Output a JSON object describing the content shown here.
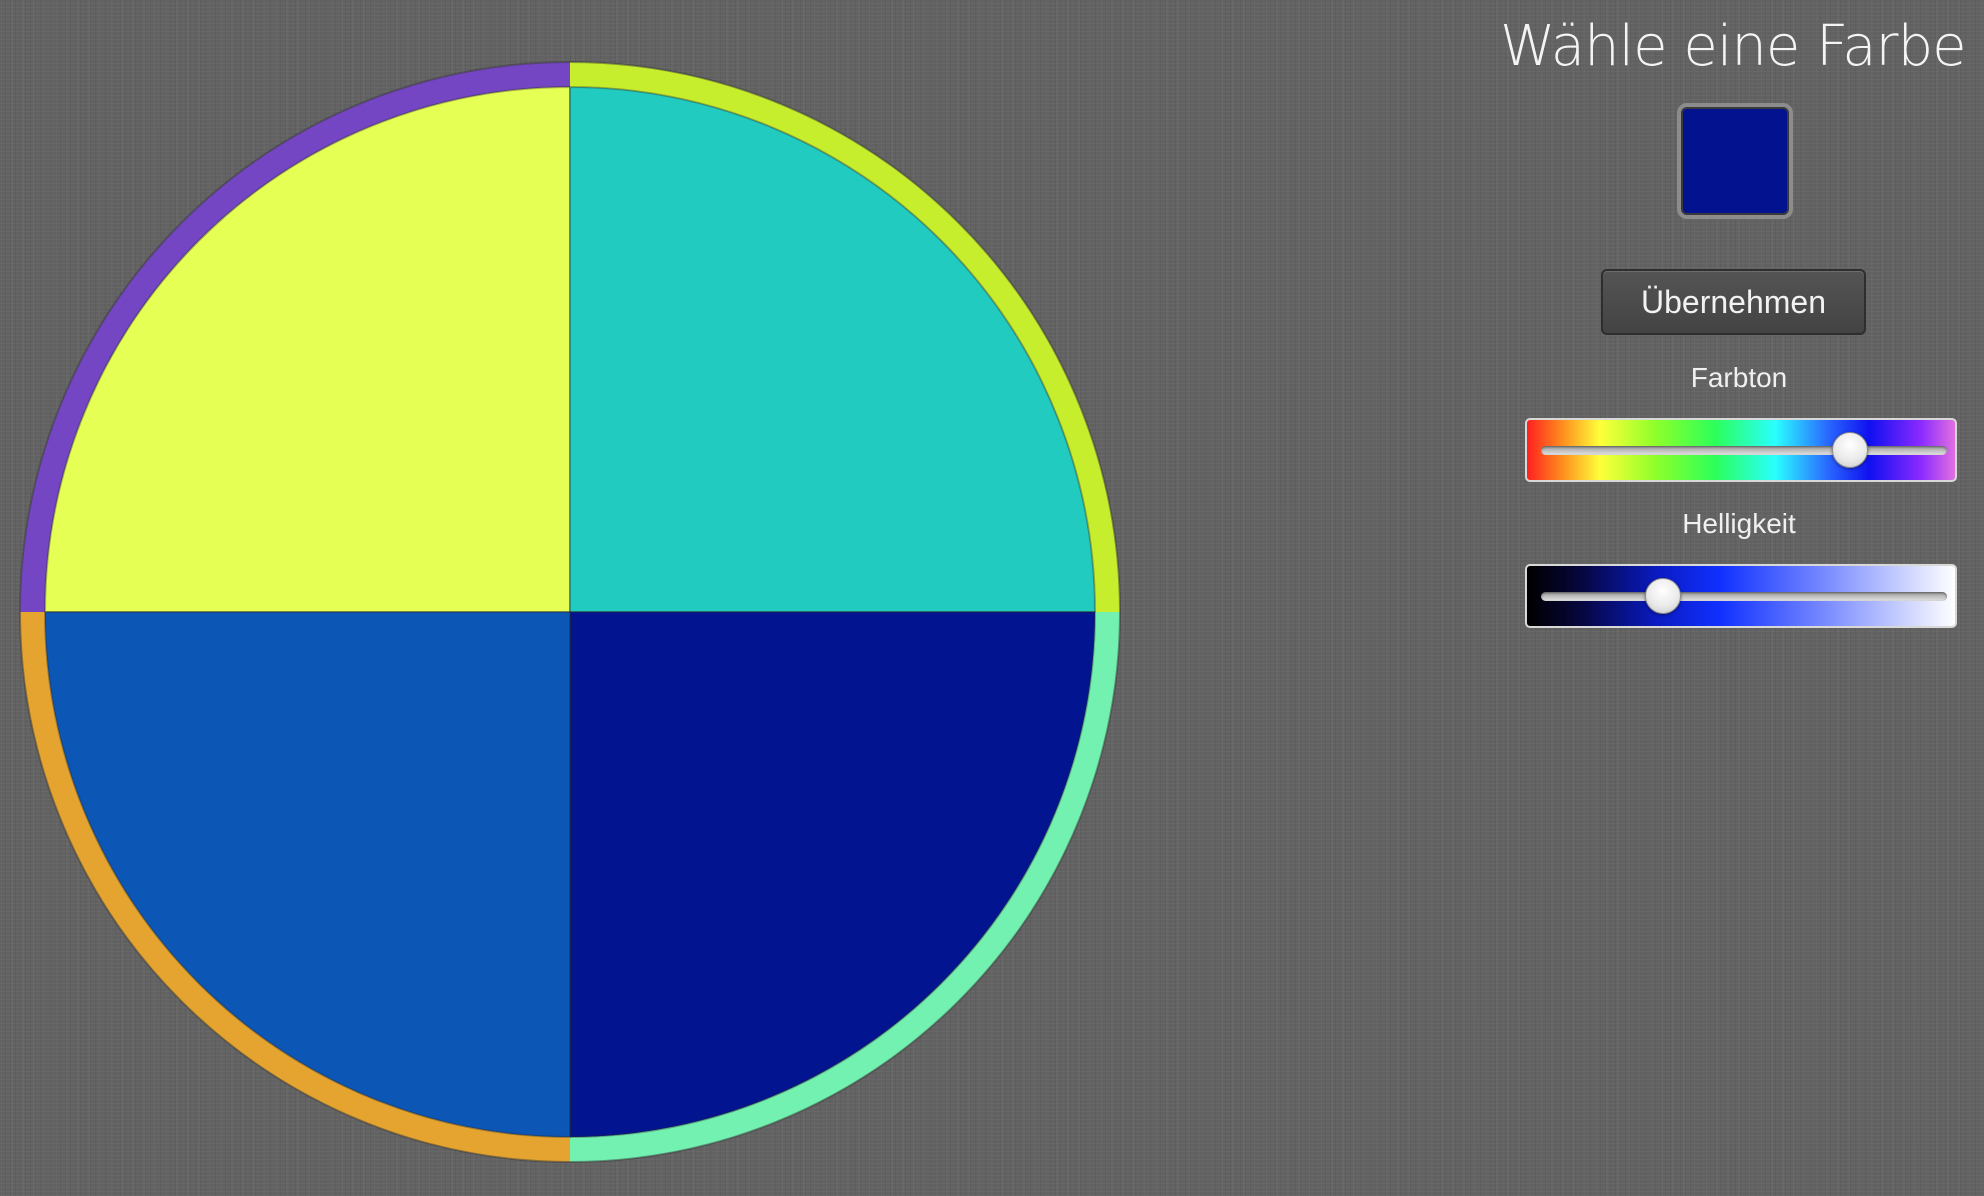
{
  "panel": {
    "title": "Wähle eine Farbe",
    "selected_color": "#03128f",
    "apply_label": "Übernehmen",
    "hue_label": "Farbton",
    "brightness_label": "Helligkeit",
    "hue_value_percent": 76,
    "brightness_value_percent": 30
  },
  "wheel": {
    "segments": [
      {
        "name": "top-left",
        "fill": "#e6ff55",
        "ring": "#7446c3"
      },
      {
        "name": "top-right",
        "fill": "#22cbbf",
        "ring": "#c6ee2c"
      },
      {
        "name": "bottom-right",
        "fill": "#021490",
        "ring": "#72f1b0"
      },
      {
        "name": "bottom-left",
        "fill": "#0c56b6",
        "ring": "#e4a42f"
      }
    ]
  }
}
